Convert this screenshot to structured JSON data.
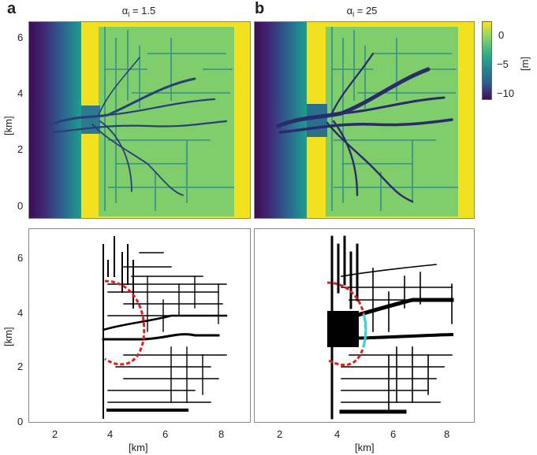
{
  "figure": {
    "panel_letters": [
      "a",
      "b"
    ],
    "panel_titles": [
      "α_l = 1.5",
      "α_l = 25"
    ],
    "title_symbol": "α",
    "title_sub": "l",
    "title_values": [
      "= 1.5",
      "= 25"
    ],
    "y_axis_label": "[km]",
    "x_axis_label": "[km]",
    "colorbar_label": "[m]",
    "colorbar_ticks": [
      "0",
      "−5",
      "−10"
    ],
    "y_ticks_top": [
      "6",
      "4",
      "2",
      "0"
    ],
    "y_ticks_bottom": [
      "6",
      "4",
      "2",
      "0"
    ],
    "x_ticks": [
      "2",
      "4",
      "6",
      "8"
    ],
    "colors": {
      "deep": "#3b0f59",
      "mid": "#2a7f8e",
      "shallow": "#8fd36a",
      "land": "#f2e11e",
      "network": "#000000",
      "arc_red": "#e0201c",
      "arc_cyan": "#35d4e6"
    }
  }
}
